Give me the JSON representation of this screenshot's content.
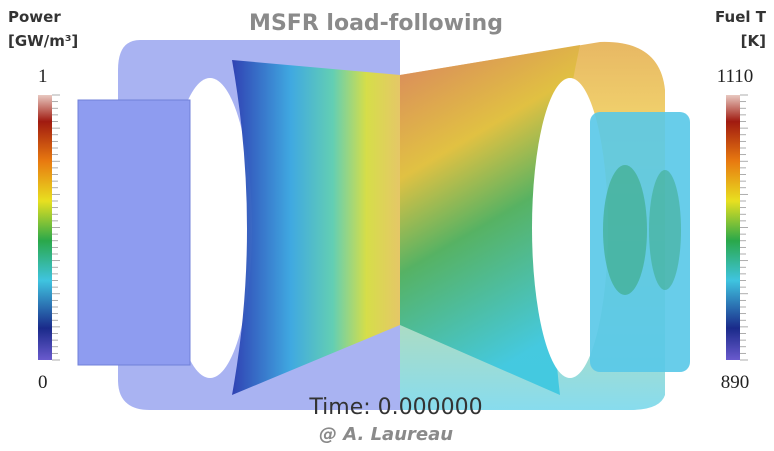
{
  "title": "MSFR load-following",
  "left_colorbar": {
    "label_line1": "Power",
    "label_line2": "[GW/m³]",
    "max": 1,
    "min": 0
  },
  "right_colorbar": {
    "label_line1": "Fuel T",
    "label_line2": "[K]",
    "max": 1110,
    "min": 890
  },
  "time": "Time: 0.000000",
  "credit": "@ A. Laureau"
}
